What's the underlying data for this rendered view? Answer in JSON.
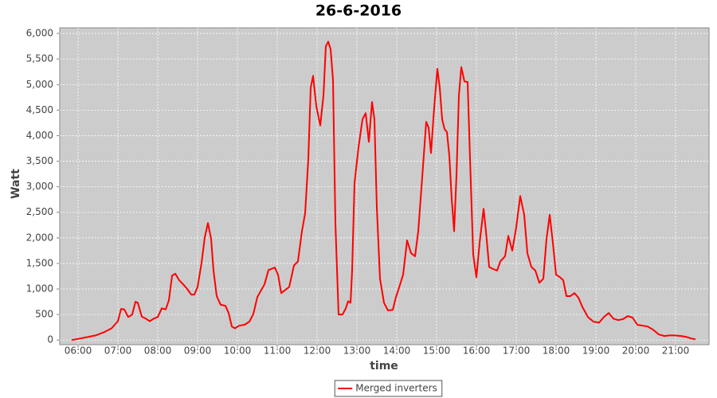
{
  "chart_data": {
    "type": "line",
    "title": "26-6-2016",
    "x_label": "time",
    "y_label": "Watt",
    "xlim": [
      5.54,
      21.84
    ],
    "ylim": [
      -90,
      6110
    ],
    "grid": true,
    "legend": "bottom",
    "xticks": [
      {
        "value": 6,
        "label": "06:00"
      },
      {
        "value": 7,
        "label": "07:00"
      },
      {
        "value": 8,
        "label": "08:00"
      },
      {
        "value": 9,
        "label": "09:00"
      },
      {
        "value": 10,
        "label": "10:00"
      },
      {
        "value": 11,
        "label": "11:00"
      },
      {
        "value": 12,
        "label": "12:00"
      },
      {
        "value": 13,
        "label": "13:00"
      },
      {
        "value": 14,
        "label": "14:00"
      },
      {
        "value": 15,
        "label": "15:00"
      },
      {
        "value": 16,
        "label": "16:00"
      },
      {
        "value": 17,
        "label": "17:00"
      },
      {
        "value": 18,
        "label": "18:00"
      },
      {
        "value": 19,
        "label": "19:00"
      },
      {
        "value": 20,
        "label": "20:00"
      },
      {
        "value": 21,
        "label": "21:00"
      }
    ],
    "yticks": [
      0,
      500,
      {
        "value": 1000,
        "label": "1,000"
      },
      {
        "value": 1500,
        "label": "1,500"
      },
      {
        "value": 2000,
        "label": "2,000"
      },
      {
        "value": 2500,
        "label": "2,500"
      },
      {
        "value": 3000,
        "label": "3,000"
      },
      {
        "value": 3500,
        "label": "3,500"
      },
      {
        "value": 4000,
        "label": "4,000"
      },
      {
        "value": 4500,
        "label": "4,500"
      },
      {
        "value": 5000,
        "label": "5,000"
      },
      {
        "value": 5500,
        "label": "5,500"
      },
      {
        "value": 6000,
        "label": "6,000"
      }
    ],
    "x": [
      5.84,
      6.04,
      6.24,
      6.44,
      6.64,
      6.84,
      7.0,
      7.08,
      7.16,
      7.26,
      7.36,
      7.44,
      7.5,
      7.6,
      7.7,
      7.8,
      7.9,
      8.0,
      8.1,
      8.2,
      8.28,
      8.36,
      8.44,
      8.54,
      8.64,
      8.74,
      8.84,
      8.92,
      9.0,
      9.1,
      9.18,
      9.26,
      9.34,
      9.4,
      9.48,
      9.58,
      9.7,
      9.78,
      9.86,
      9.94,
      10.04,
      10.18,
      10.3,
      10.4,
      10.5,
      10.6,
      10.68,
      10.78,
      10.94,
      11.02,
      11.1,
      11.2,
      11.3,
      11.42,
      11.52,
      11.62,
      11.7,
      11.78,
      11.84,
      11.9,
      11.98,
      12.08,
      12.16,
      12.22,
      12.28,
      12.34,
      12.4,
      12.46,
      12.54,
      12.64,
      12.72,
      12.78,
      12.84,
      12.88,
      12.94,
      13.04,
      13.14,
      13.22,
      13.3,
      13.38,
      13.44,
      13.5,
      13.58,
      13.68,
      13.78,
      13.9,
      13.98,
      14.08,
      14.16,
      14.26,
      14.36,
      14.46,
      14.54,
      14.64,
      14.74,
      14.8,
      14.86,
      14.94,
      15.02,
      15.08,
      15.14,
      15.2,
      15.26,
      15.32,
      15.38,
      15.44,
      15.5,
      15.56,
      15.62,
      15.7,
      15.78,
      15.84,
      15.92,
      16.0,
      16.08,
      16.18,
      16.24,
      16.32,
      16.42,
      16.52,
      16.6,
      16.72,
      16.8,
      16.9,
      17.0,
      17.1,
      17.2,
      17.28,
      17.38,
      17.48,
      17.58,
      17.68,
      17.76,
      17.84,
      17.92,
      18.0,
      18.1,
      18.18,
      18.26,
      18.36,
      18.46,
      18.56,
      18.66,
      18.8,
      18.94,
      19.08,
      19.2,
      19.32,
      19.44,
      19.56,
      19.68,
      19.8,
      19.92,
      20.04,
      20.18,
      20.3,
      20.44,
      20.58,
      20.72,
      20.84,
      20.98,
      21.14,
      21.28,
      21.4,
      21.5
    ],
    "series": [
      {
        "name": "Merged inverters",
        "color": "#ff0000",
        "values": [
          0,
          30,
          60,
          90,
          150,
          230,
          370,
          610,
          600,
          450,
          500,
          750,
          730,
          460,
          420,
          370,
          420,
          450,
          620,
          600,
          780,
          1260,
          1300,
          1170,
          1090,
          1000,
          890,
          890,
          1040,
          1510,
          2010,
          2290,
          1980,
          1360,
          860,
          690,
          670,
          530,
          265,
          230,
          280,
          300,
          360,
          510,
          840,
          980,
          1090,
          1370,
          1420,
          1280,
          920,
          980,
          1040,
          1460,
          1540,
          2130,
          2480,
          3540,
          4940,
          5170,
          4580,
          4200,
          4780,
          5750,
          5840,
          5690,
          5090,
          2290,
          500,
          500,
          620,
          760,
          730,
          1360,
          3070,
          3770,
          4320,
          4440,
          3880,
          4660,
          4320,
          2600,
          1200,
          730,
          580,
          590,
          840,
          1080,
          1280,
          1950,
          1700,
          1640,
          2130,
          3190,
          4270,
          4160,
          3660,
          4550,
          5310,
          4940,
          4320,
          4130,
          4070,
          3610,
          2760,
          2130,
          3220,
          4780,
          5340,
          5060,
          5050,
          3540,
          1670,
          1230,
          1900,
          2570,
          2130,
          1430,
          1390,
          1360,
          1540,
          1640,
          2040,
          1750,
          2210,
          2820,
          2450,
          1700,
          1430,
          1360,
          1120,
          1200,
          1980,
          2450,
          1900,
          1280,
          1230,
          1170,
          860,
          860,
          920,
          830,
          650,
          450,
          360,
          340,
          450,
          530,
          420,
          390,
          410,
          470,
          440,
          300,
          280,
          265,
          200,
          110,
          80,
          90,
          90,
          80,
          60,
          30,
          15
        ]
      }
    ]
  }
}
